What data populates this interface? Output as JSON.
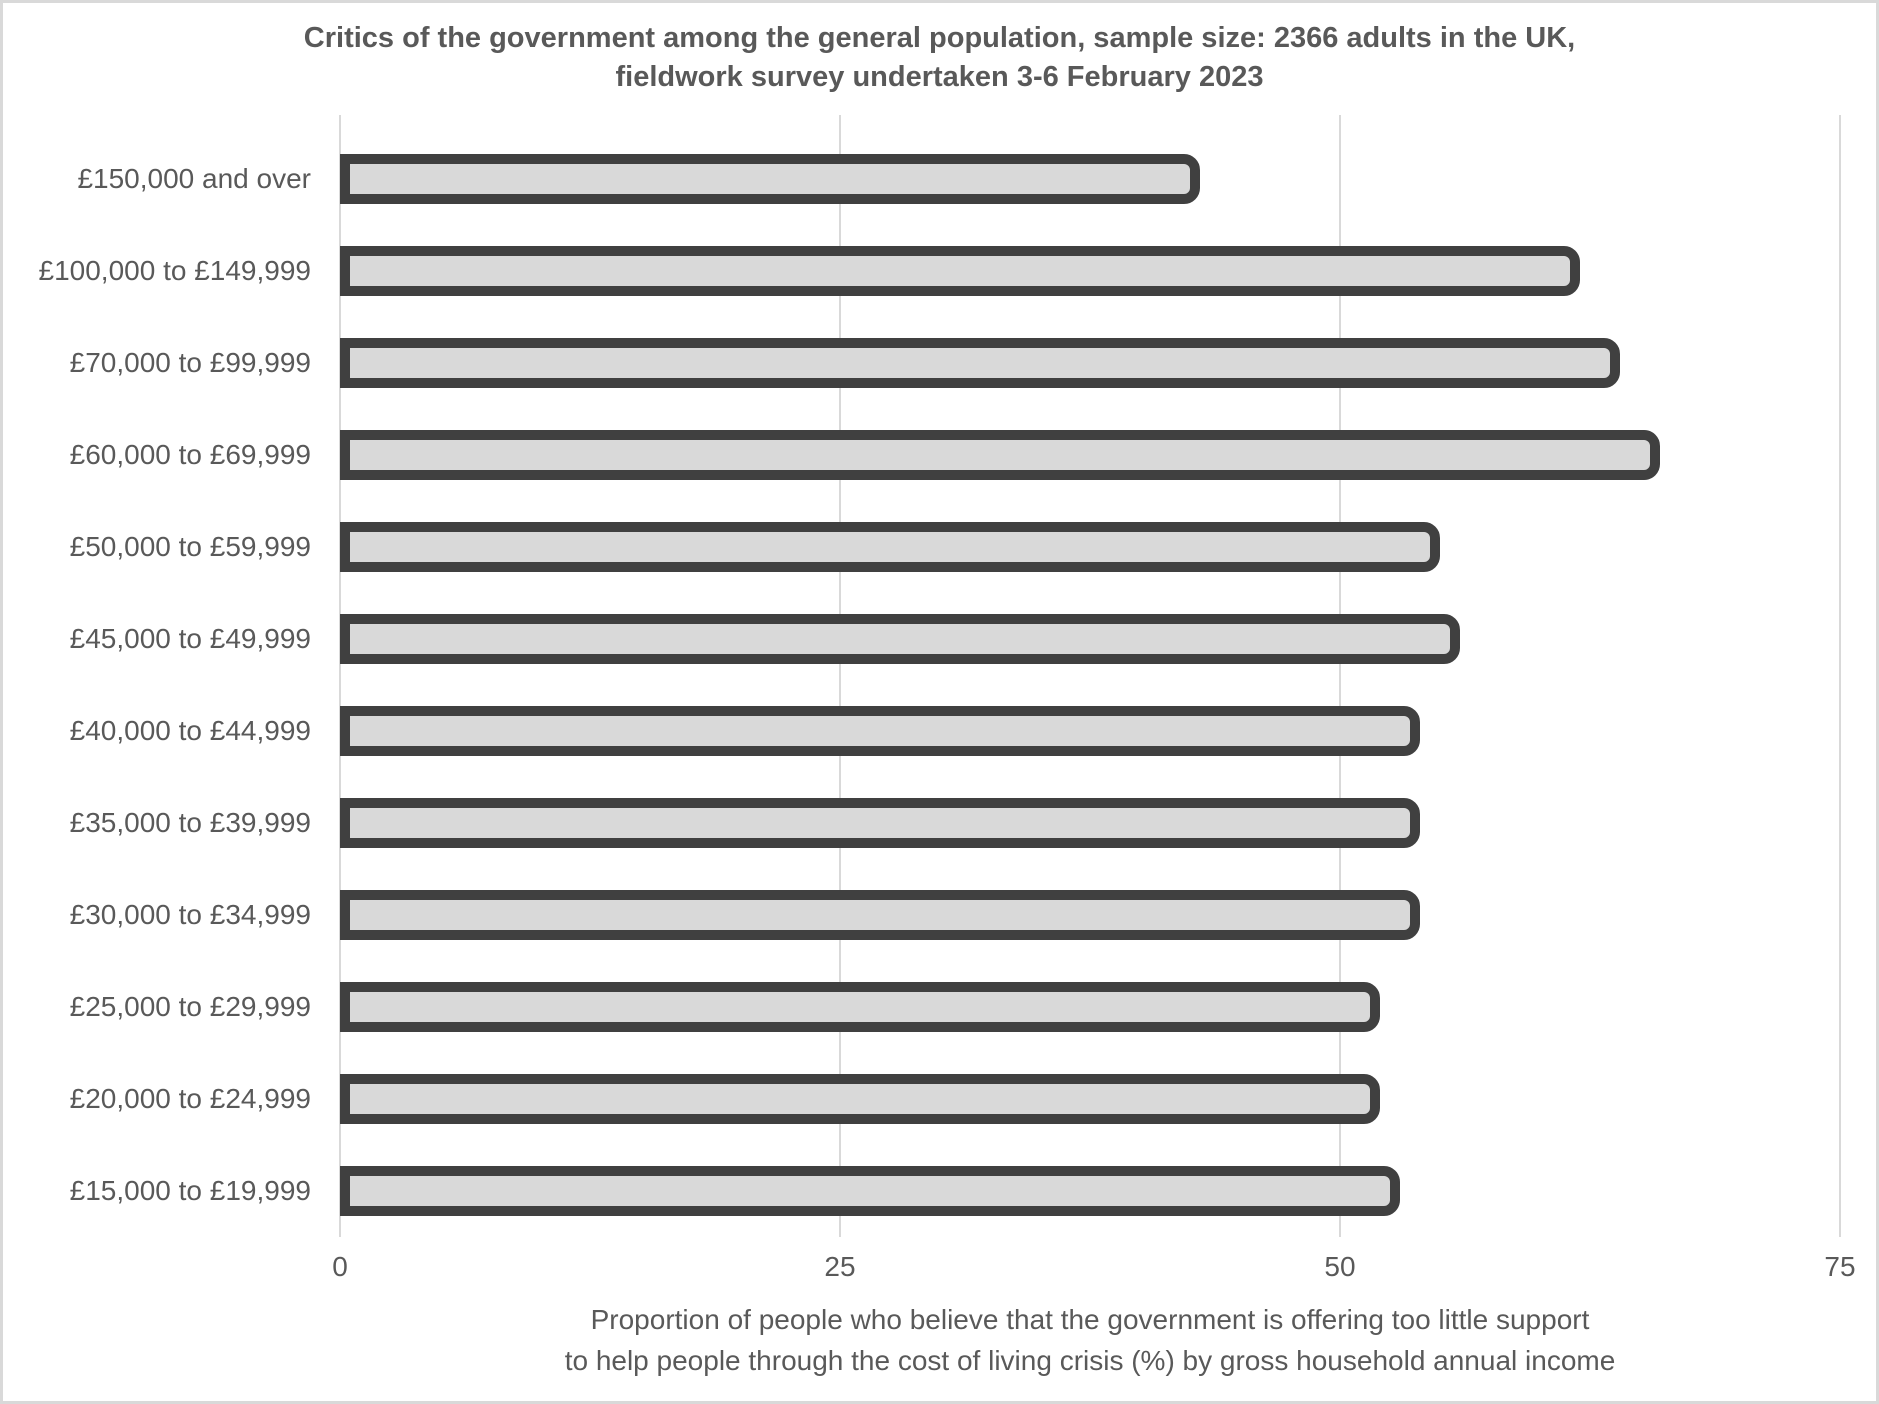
{
  "chart_data": {
    "type": "bar",
    "orientation": "horizontal",
    "title": "Critics of the government among the general population, sample size: 2366 adults in the UK, fieldwork survey undertaken 3-6 February 2023",
    "title_lines": [
      "Critics of the government among the general population, sample size: 2366 adults in the UK,",
      "fieldwork survey undertaken 3-6 February 2023"
    ],
    "categories": [
      "£150,000 and over",
      "£100,000 to £149,999",
      "£70,000 to £99,999",
      "£60,000 to £69,999",
      "£50,000 to £59,999",
      "£45,000 to £49,999",
      "£40,000 to £44,999",
      "£35,000 to £39,999",
      "£30,000 to £34,999",
      "£25,000 to £29,999",
      "£20,000 to £24,999",
      "£15,000 to £19,999"
    ],
    "values": [
      43,
      62,
      64,
      66,
      55,
      56,
      54,
      54,
      54,
      52,
      52,
      53
    ],
    "xlabel": "Proportion of people who believe that the government is offering too little support to help people through the cost of living crisis (%) by gross household annual income",
    "xlabel_lines": [
      "Proportion of people who believe that the government is offering too little support",
      "to help people through the cost of living crisis (%) by gross household annual income"
    ],
    "ylabel": "",
    "xlim": [
      0,
      75
    ],
    "xticks": [
      0,
      25,
      50,
      75
    ],
    "grid": "vertical-gridlines-on",
    "legend": "none",
    "colors": {
      "bar_fill": "#d9d9d9",
      "bar_border": "#404040",
      "gridline": "#d9d9d9",
      "text": "#595959",
      "frame_border": "#d9d9d9",
      "background": "#ffffff"
    }
  }
}
